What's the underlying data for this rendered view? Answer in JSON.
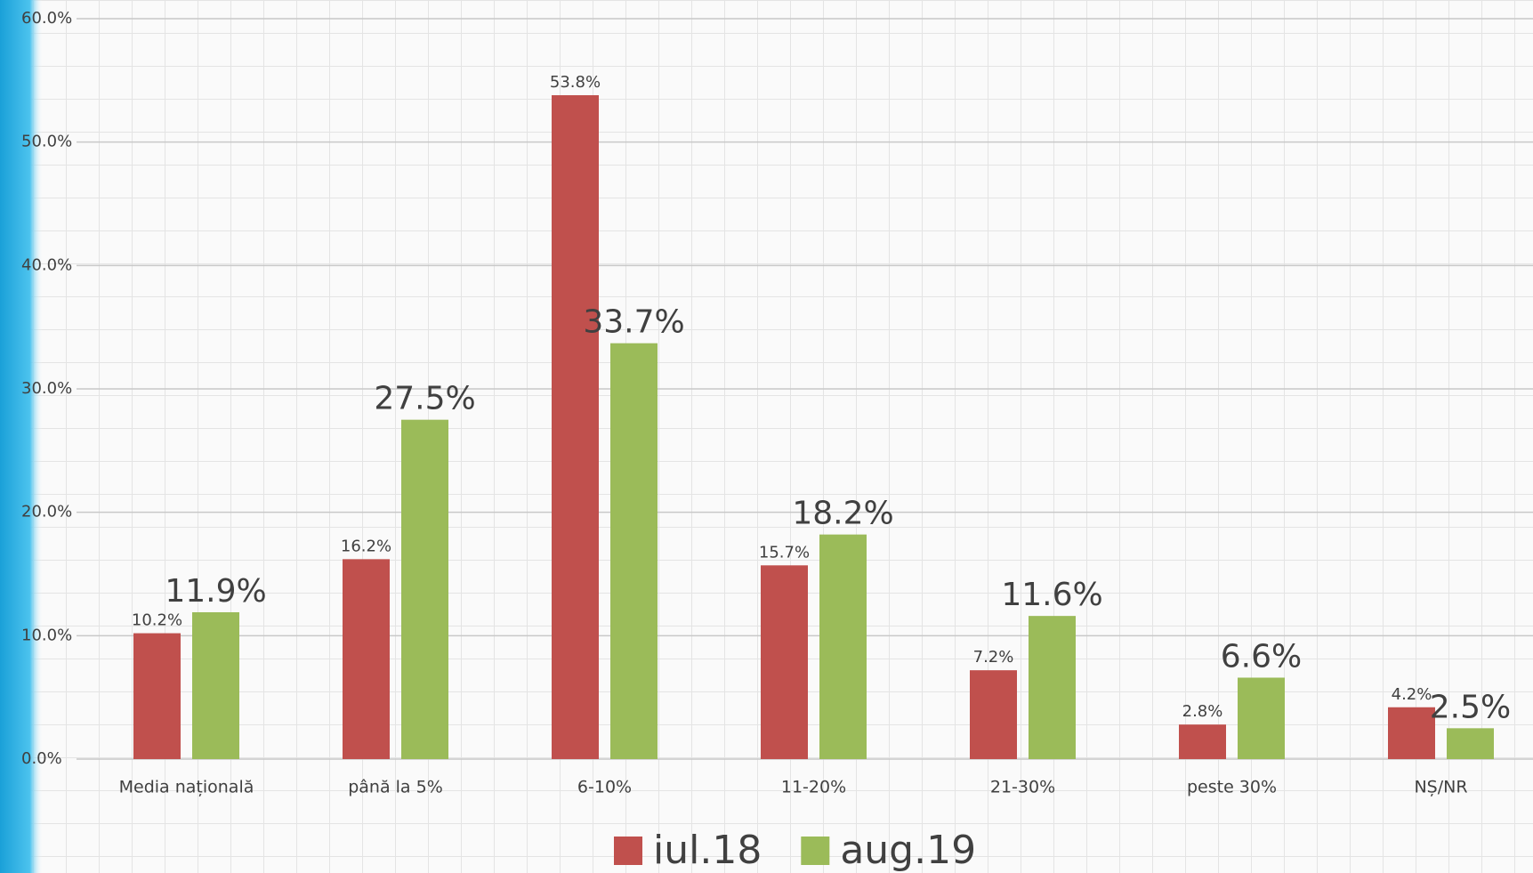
{
  "chart_data": {
    "type": "bar",
    "categories": [
      "Media națională",
      "până la 5%",
      "6-10%",
      "11-20%",
      "21-30%",
      "peste 30%",
      "NȘ/NR"
    ],
    "series": [
      {
        "name": "iul.18",
        "color": "#c0504d",
        "values": [
          10.2,
          16.2,
          53.8,
          15.7,
          7.2,
          2.8,
          4.2
        ],
        "value_labels": [
          "10.2%",
          "16.2%",
          "53.8%",
          "15.7%",
          "7.2%",
          "2.8%",
          "4.2%"
        ]
      },
      {
        "name": "aug.19",
        "color": "#9bbb59",
        "values": [
          11.9,
          27.5,
          33.7,
          18.2,
          11.6,
          6.6,
          2.5
        ],
        "value_labels": [
          "11.9%",
          "27.5%",
          "33.7%",
          "18.2%",
          "11.6%",
          "6.6%",
          "2.5%"
        ]
      }
    ],
    "ylim": [
      0,
      60
    ],
    "yticks": [
      {
        "value": 0,
        "label": "0.0%"
      },
      {
        "value": 10,
        "label": "10.0%"
      },
      {
        "value": 20,
        "label": "20.0%"
      },
      {
        "value": 30,
        "label": "30.0%"
      },
      {
        "value": 40,
        "label": "40.0%"
      },
      {
        "value": 50,
        "label": "50.0%"
      },
      {
        "value": 60,
        "label": "60.0%"
      }
    ],
    "grid": true
  }
}
